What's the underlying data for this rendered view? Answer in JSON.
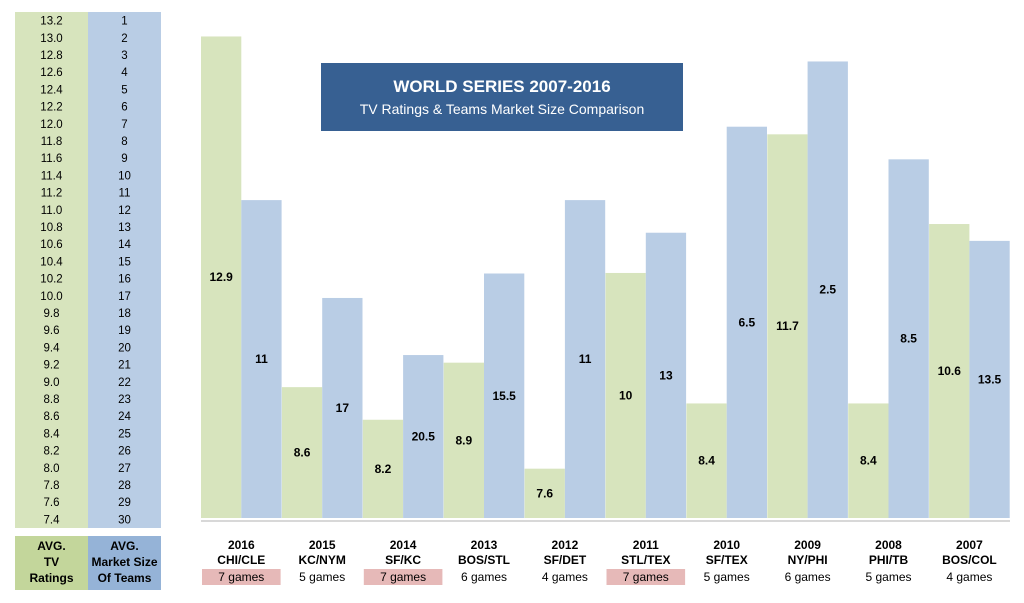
{
  "chart_data": {
    "type": "bar",
    "title": "WORLD SERIES 2007-2016",
    "subtitle": "TV Ratings & Teams Market Size Comparison",
    "categories": [
      "2016",
      "2015",
      "2014",
      "2013",
      "2012",
      "2011",
      "2010",
      "2009",
      "2008",
      "2007"
    ],
    "matchups": [
      "CHI/CLE",
      "KC/NYM",
      "SF/KC",
      "BOS/STL",
      "SF/DET",
      "STL/TEX",
      "SF/TEX",
      "NY/PHI",
      "PHI/TB",
      "BOS/COL"
    ],
    "games": [
      "7 games",
      "5 games",
      "7 games",
      "6 games",
      "4 games",
      "7 games",
      "5 games",
      "6 games",
      "5 games",
      "4 games"
    ],
    "seven_game_highlight": [
      true,
      false,
      true,
      false,
      false,
      true,
      false,
      false,
      false,
      false
    ],
    "series": [
      {
        "name": "AVG. TV Ratings",
        "values": [
          12.9,
          8.6,
          8.2,
          8.9,
          7.6,
          10,
          8.4,
          11.7,
          8.4,
          10.6
        ],
        "color": "#d7e4bd"
      },
      {
        "name": "AVG. Market Size Of Teams",
        "values": [
          11,
          17,
          20.5,
          15.5,
          11,
          13,
          6.5,
          2.5,
          8.5,
          13.5
        ],
        "color": "#b9cde5"
      }
    ],
    "ratings_axis": {
      "ticks": [
        "13.2",
        "13.0",
        "12.8",
        "12.6",
        "12.4",
        "12.2",
        "12.0",
        "11.8",
        "11.6",
        "11.4",
        "11.2",
        "11.0",
        "10.8",
        "10.6",
        "10.4",
        "10.2",
        "10.0",
        "9.8",
        "9.6",
        "9.4",
        "9.2",
        "9.0",
        "8.8",
        "8.6",
        "8.4",
        "8.2",
        "8.0",
        "7.8",
        "7.6",
        "7.4"
      ],
      "range": [
        13.2,
        7.4
      ],
      "label_lines": [
        "AVG.",
        "TV",
        "Ratings"
      ]
    },
    "market_axis": {
      "ticks": [
        "1",
        "2",
        "3",
        "4",
        "5",
        "6",
        "7",
        "8",
        "9",
        "10",
        "11",
        "12",
        "13",
        "14",
        "15",
        "16",
        "17",
        "18",
        "19",
        "20",
        "21",
        "22",
        "23",
        "24",
        "25",
        "26",
        "27",
        "28",
        "29",
        "30"
      ],
      "range": [
        1,
        30
      ],
      "inverted": true,
      "label_lines": [
        "AVG.",
        "Market Size",
        "Of Teams"
      ]
    },
    "colors": {
      "title_bg": "#376092",
      "ratings_col": "#d7e4bd",
      "market_col": "#b9cde5",
      "ratings_label_bg": "#c3d69b",
      "market_label_bg": "#95b3d7",
      "highlight": "#e6b9b8"
    }
  }
}
